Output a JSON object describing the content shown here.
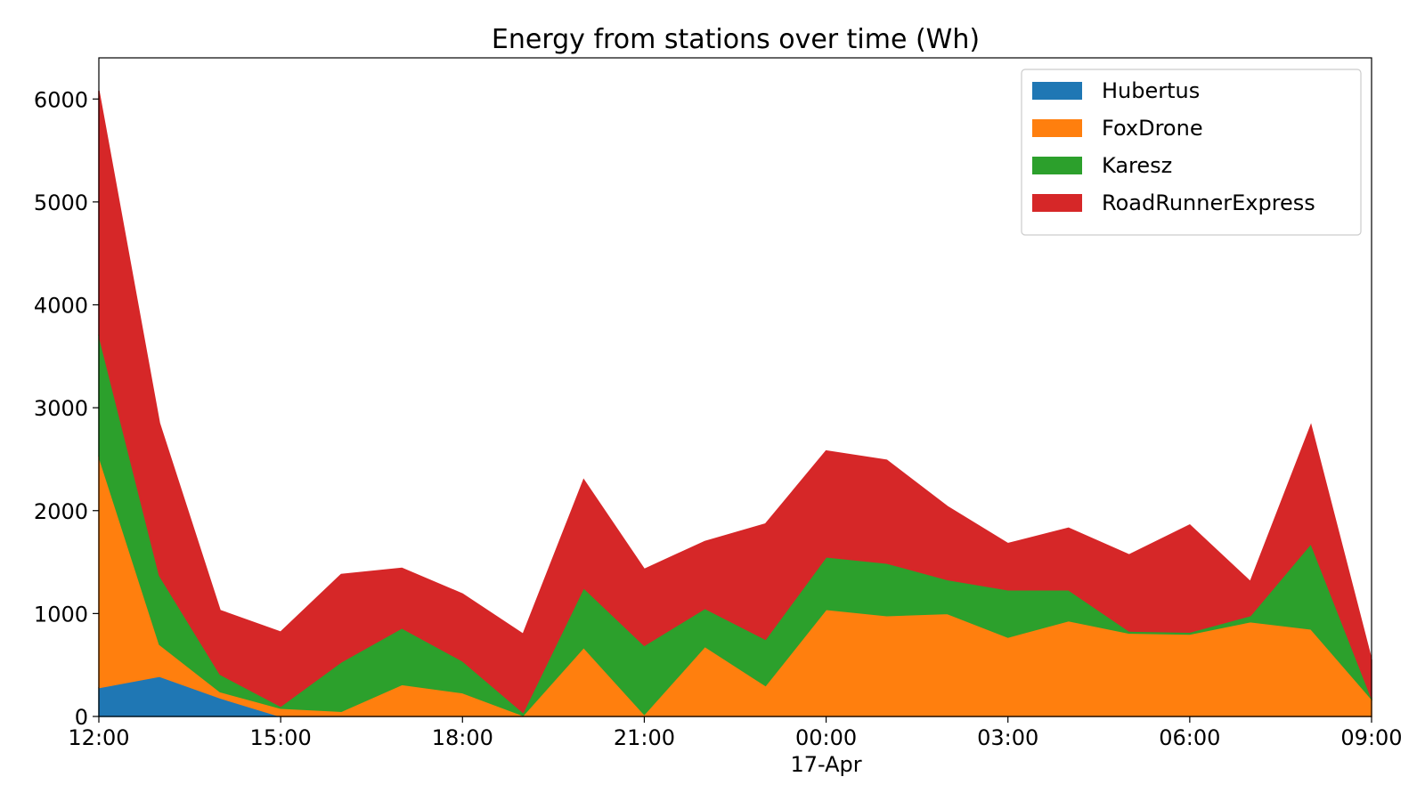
{
  "chart_data": {
    "type": "area",
    "stacked": true,
    "title": "Energy from stations over time (Wh)",
    "xlabel": "",
    "ylabel": "",
    "x": [
      "16-Apr 12:00",
      "16-Apr 13:00",
      "16-Apr 14:00",
      "16-Apr 15:00",
      "16-Apr 16:00",
      "16-Apr 17:00",
      "16-Apr 18:00",
      "16-Apr 19:00",
      "16-Apr 20:00",
      "16-Apr 21:00",
      "16-Apr 22:00",
      "16-Apr 23:00",
      "17-Apr 00:00",
      "17-Apr 01:00",
      "17-Apr 02:00",
      "17-Apr 03:00",
      "17-Apr 04:00",
      "17-Apr 05:00",
      "17-Apr 06:00",
      "17-Apr 07:00",
      "17-Apr 08:00",
      "17-Apr 09:00"
    ],
    "x_tick_labels": [
      "12:00",
      "15:00",
      "18:00",
      "21:00",
      "00:00",
      "03:00",
      "06:00",
      "09:00"
    ],
    "x_tick_index": [
      0,
      3,
      6,
      9,
      12,
      15,
      18,
      21
    ],
    "x_secondary_label": {
      "text": "17-Apr",
      "index": 12
    },
    "ylim": [
      0,
      6400
    ],
    "yticks": [
      0,
      1000,
      2000,
      3000,
      4000,
      5000,
      6000
    ],
    "legend_position": "upper-right",
    "series": [
      {
        "name": "Hubertus",
        "color": "#1f77b4",
        "values": [
          280,
          390,
          180,
          0,
          0,
          0,
          0,
          0,
          0,
          0,
          0,
          0,
          0,
          0,
          0,
          0,
          0,
          0,
          0,
          0,
          0,
          0
        ]
      },
      {
        "name": "FoxDrone",
        "color": "#ff7f0e",
        "values": [
          2250,
          310,
          60,
          80,
          50,
          310,
          230,
          10,
          670,
          20,
          680,
          300,
          1040,
          980,
          1000,
          770,
          930,
          810,
          800,
          920,
          850,
          170
        ]
      },
      {
        "name": "Karesz",
        "color": "#2ca02c",
        "values": [
          1180,
          670,
          170,
          20,
          480,
          550,
          310,
          30,
          580,
          670,
          370,
          450,
          510,
          510,
          330,
          460,
          300,
          20,
          20,
          60,
          830,
          10
        ]
      },
      {
        "name": "RoadRunnerExpress",
        "color": "#d62728",
        "values": [
          2370,
          1480,
          620,
          720,
          850,
          580,
          650,
          760,
          1050,
          740,
          650,
          1120,
          1030,
          1000,
          710,
          450,
          600,
          740,
          1040,
          330,
          1150,
          370
        ]
      }
    ]
  }
}
